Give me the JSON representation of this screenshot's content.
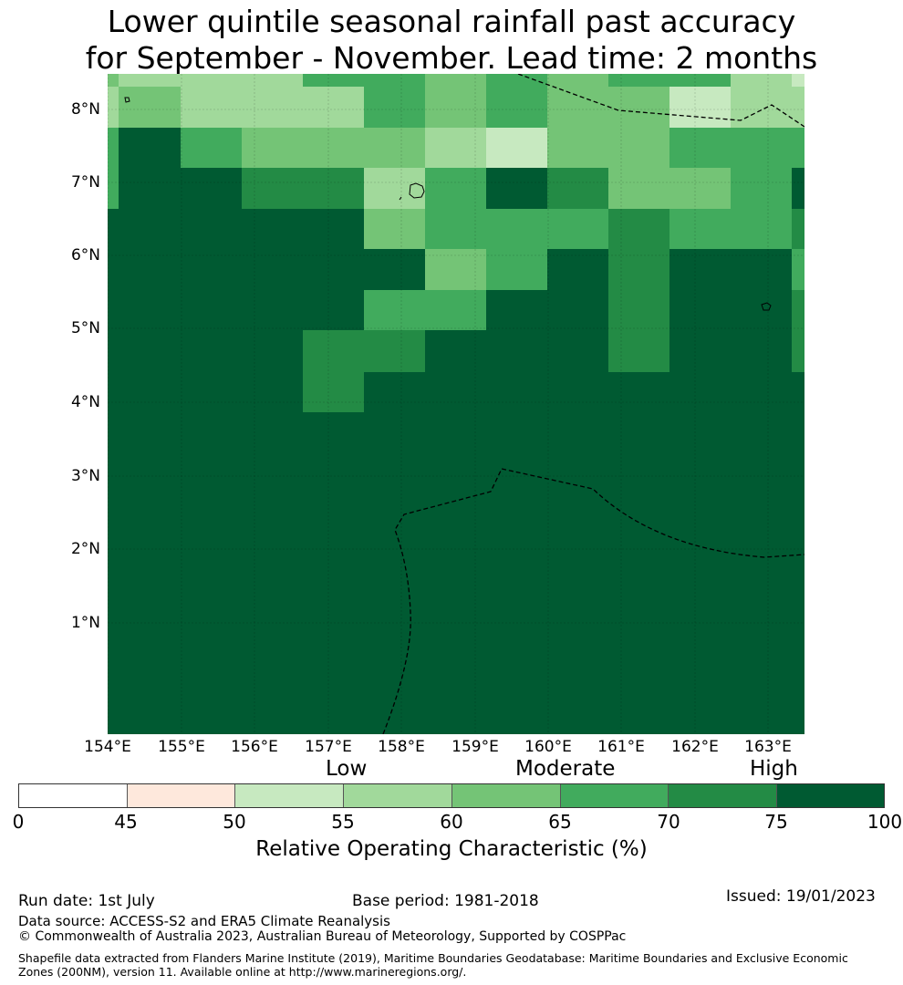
{
  "title": {
    "line1": "Lower quintile seasonal rainfall past accuracy",
    "line2": "for September - November. Lead time: 2 months"
  },
  "map": {
    "lat_labels": [
      "8°N",
      "7°N",
      "6°N",
      "5°N",
      "4°N",
      "3°N",
      "2°N",
      "1°N"
    ],
    "lon_labels": [
      "154°E",
      "155°E",
      "156°E",
      "157°E",
      "158°E",
      "159°E",
      "160°E",
      "161°E",
      "162°E",
      "163°E"
    ],
    "palette": {
      "50-55": "#c7e9c0",
      "55-60": "#a1d99b",
      "60-65": "#74c476",
      "65-70": "#41ab5d",
      "70-75": "#238b45",
      "75-100": "#005a32"
    }
  },
  "colorbar": {
    "category_labels": [
      "Low",
      "Moderate",
      "High"
    ],
    "ticks": [
      "0",
      "45",
      "50",
      "55",
      "60",
      "65",
      "70",
      "75",
      "100"
    ],
    "segment_colors": [
      "#ffffff",
      "#fee8dc",
      "#c7e9c0",
      "#a1d99b",
      "#74c476",
      "#41ab5d",
      "#238b45",
      "#005a32"
    ],
    "title": "Relative Operating Characteristic (%)"
  },
  "footer": {
    "run_date": "Run date: 1st July",
    "base_period": "Base period: 1981-2018",
    "issued": "Issued: 19/01/2023",
    "data_source": "Data source: ACCESS-S2 and ERA5 Climate Reanalysis",
    "copyright": "© Commonwealth of Australia 2023, Australian Bureau of Meteorology, Supported by COSPPac",
    "shapefile": "Shapefile data extracted from Flanders Marine Institute (2019), Maritime Boundaries Geodatabase: Maritime Boundaries and Exclusive Economic Zones (200NM), version 11. Available online at http://www.marineregions.org/."
  }
}
